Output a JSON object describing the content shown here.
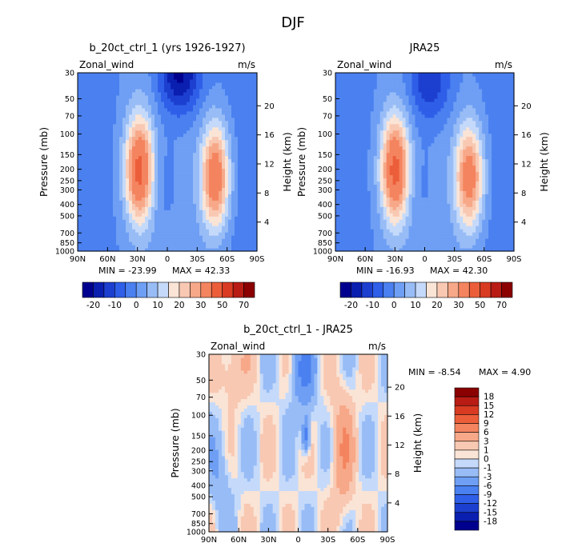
{
  "figure_title": "DJF",
  "chart_data": [
    {
      "type": "heatmap",
      "title": "b_20ct_ctrl_1 (yrs 1926-1927)",
      "variable": "Zonal_wind",
      "units": "m/s",
      "ylabel": "Pressure (mb)",
      "ylabel_right": "Height (km)",
      "x_ticks": [
        "90N",
        "60N",
        "30N",
        "0",
        "30S",
        "60S",
        "90S"
      ],
      "p_ticks": [
        "30",
        "50",
        "70",
        "100",
        "150",
        "200",
        "250",
        "300",
        "400",
        "500",
        "700",
        "850",
        "1000"
      ],
      "z_ticks": [
        "20",
        "16",
        "12",
        "8",
        "4"
      ],
      "min_text": "MIN = -23.99",
      "max_text": "MAX = 42.33",
      "min": -23.99,
      "max": 42.33,
      "levels": [
        -20,
        -15,
        -10,
        -5,
        0,
        5,
        10,
        15,
        20,
        25,
        30,
        40,
        50,
        60,
        70
      ],
      "level_labels": [
        "-20",
        "-10",
        "0",
        "10",
        "20",
        "30",
        "50",
        "70"
      ],
      "jets": [
        {
          "lat": 28,
          "p_mb": 200,
          "peak": 42.3,
          "sx": 10,
          "sy": 0.72
        },
        {
          "lat": -48,
          "p_mb": 230,
          "peak": 38,
          "sx": 10,
          "sy": 0.72
        }
      ],
      "easterlies": [
        {
          "lat": -12,
          "p_mb": 30,
          "peak": -24,
          "sx": 15,
          "sy": 0.55
        },
        {
          "lat": 5,
          "p_mb": 250,
          "peak": -5,
          "sx": 12,
          "sy": 0.8
        }
      ]
    },
    {
      "type": "heatmap",
      "title": "JRA25",
      "variable": "Zonal_wind",
      "units": "m/s",
      "ylabel": "Pressure (mb)",
      "ylabel_right": "Height (km)",
      "x_ticks": [
        "90N",
        "60N",
        "30N",
        "0",
        "30S",
        "60S",
        "90S"
      ],
      "p_ticks": [
        "30",
        "50",
        "70",
        "100",
        "150",
        "200",
        "250",
        "300",
        "400",
        "500",
        "700",
        "850",
        "1000"
      ],
      "z_ticks": [
        "20",
        "16",
        "12",
        "8",
        "4"
      ],
      "min_text": "MIN = -16.93",
      "max_text": "MAX = 42.30",
      "min": -16.93,
      "max": 42.3,
      "levels": [
        -20,
        -15,
        -10,
        -5,
        0,
        5,
        10,
        15,
        20,
        25,
        30,
        40,
        50,
        60,
        70
      ],
      "level_labels": [
        "-20",
        "-10",
        "0",
        "10",
        "20",
        "30",
        "50",
        "70"
      ],
      "jets": [
        {
          "lat": 30,
          "p_mb": 200,
          "peak": 42.3,
          "sx": 10,
          "sy": 0.72
        },
        {
          "lat": -45,
          "p_mb": 230,
          "peak": 36,
          "sx": 10,
          "sy": 0.72
        }
      ],
      "easterlies": [
        {
          "lat": -5,
          "p_mb": 35,
          "peak": -17,
          "sx": 15,
          "sy": 0.55
        },
        {
          "lat": 5,
          "p_mb": 250,
          "peak": -4,
          "sx": 12,
          "sy": 0.8
        }
      ]
    },
    {
      "type": "heatmap",
      "title": "b_20ct_ctrl_1 - JRA25",
      "variable": "Zonal_wind",
      "units": "m/s",
      "ylabel": "Pressure (mb)",
      "ylabel_right": "Height (km)",
      "x_ticks": [
        "90N",
        "60N",
        "30N",
        "0",
        "30S",
        "60S",
        "90S"
      ],
      "p_ticks": [
        "30",
        "50",
        "70",
        "100",
        "150",
        "200",
        "250",
        "300",
        "400",
        "500",
        "700",
        "850",
        "1000"
      ],
      "z_ticks": [
        "20",
        "16",
        "12",
        "8",
        "4"
      ],
      "min_text": "MIN =   -8.54",
      "max_text": "MAX =    4.90",
      "min": -8.54,
      "max": 4.9,
      "levels": [
        -18,
        -15,
        -12,
        -9,
        -6,
        -3,
        -1,
        0,
        1,
        3,
        6,
        9,
        12,
        15,
        18
      ],
      "level_labels": [
        "18",
        "15",
        "12",
        "9",
        "6",
        "3",
        "1",
        "0",
        "-1",
        "-3",
        "-6",
        "-9",
        "-12",
        "-15",
        "-18"
      ]
    }
  ],
  "colormap_16": [
    "#00008f",
    "#0a1fb0",
    "#1d3fd0",
    "#2f5fe8",
    "#4a80f0",
    "#6e9ff4",
    "#98bcf6",
    "#c5dafa",
    "#fae4d6",
    "#f8c8b2",
    "#f7a888",
    "#f4845f",
    "#ec5e3a",
    "#d83a22",
    "#b81c14",
    "#8b0000"
  ]
}
